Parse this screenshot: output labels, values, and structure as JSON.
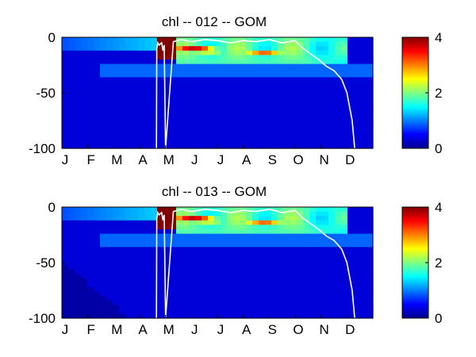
{
  "chart_data": [
    {
      "type": "heatmap",
      "title": "chl -- 012 -- GOM",
      "xlabel": "",
      "ylabel": "",
      "x_tick_labels": [
        "J",
        "F",
        "M",
        "A",
        "M",
        "J",
        "J",
        "A",
        "S",
        "O",
        "N",
        "D"
      ],
      "y_ticks": [
        0,
        -50,
        -100
      ],
      "ylim": [
        -100,
        0
      ],
      "colorbar": {
        "range": [
          0,
          4
        ],
        "ticks": [
          0,
          2,
          4
        ],
        "colormap": "jet"
      },
      "white_contour_depth": {
        "month": [
          3.65,
          3.66,
          3.7,
          3.75,
          3.8,
          3.85,
          3.9,
          3.95,
          4.0,
          4.3,
          4.6,
          5.0,
          5.5,
          6.0,
          6.5,
          7.0,
          7.5,
          8.0,
          8.5,
          9.0,
          9.3,
          9.6,
          9.9,
          10.2,
          10.5,
          10.8,
          11.0,
          11.2,
          11.3
        ],
        "depth": [
          -100,
          -10,
          -5,
          -7,
          -6,
          -5,
          -12,
          -7,
          -100,
          -4,
          -2,
          -4,
          -2,
          -3,
          -5,
          -3,
          -4,
          -2,
          -5,
          -3,
          -10,
          -15,
          -20,
          -26,
          -30,
          -38,
          -50,
          -75,
          -100
        ]
      }
    },
    {
      "type": "heatmap",
      "title": "chl -- 013 -- GOM",
      "xlabel": "",
      "ylabel": "",
      "x_tick_labels": [
        "J",
        "F",
        "M",
        "A",
        "M",
        "J",
        "J",
        "A",
        "S",
        "O",
        "N",
        "D"
      ],
      "y_ticks": [
        0,
        -50,
        -100
      ],
      "ylim": [
        -100,
        0
      ],
      "colorbar": {
        "range": [
          0,
          4
        ],
        "ticks": [
          0,
          2,
          4
        ],
        "colormap": "jet"
      },
      "white_contour_depth": {
        "month": [
          3.65,
          3.66,
          3.7,
          3.75,
          3.8,
          3.85,
          3.9,
          3.95,
          4.0,
          4.3,
          4.6,
          5.0,
          5.5,
          6.0,
          6.5,
          7.0,
          7.5,
          8.0,
          8.5,
          9.0,
          9.3,
          9.6,
          9.9,
          10.2,
          10.5,
          10.8,
          11.0,
          11.2,
          11.3
        ],
        "depth": [
          -100,
          -10,
          -5,
          -7,
          -6,
          -5,
          -12,
          -7,
          -100,
          -4,
          -2,
          -4,
          -2,
          -3,
          -5,
          -3,
          -4,
          -2,
          -5,
          -3,
          -10,
          -15,
          -20,
          -26,
          -30,
          -38,
          -50,
          -75,
          -100
        ]
      }
    }
  ]
}
